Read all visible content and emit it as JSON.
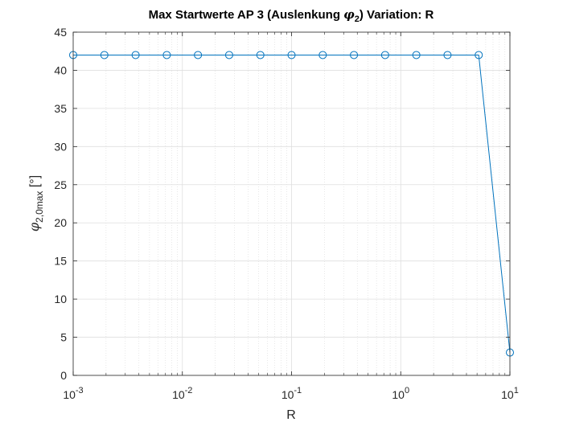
{
  "chart_data": {
    "type": "line",
    "title_parts": {
      "before": "Max Startwerte AP 3 (Auslenkung ",
      "symbol": "φ",
      "subscript": "2",
      "after": ")  Variation: R"
    },
    "xlabel": "R",
    "ylabel_parts": {
      "symbol": "φ",
      "subscript": "2,0max",
      "unit": " [°]"
    },
    "x_scale": "log",
    "xlim": [
      0.001,
      10
    ],
    "ylim": [
      0,
      45
    ],
    "x_ticks": [
      {
        "base": "10",
        "exp": "-3",
        "value": 0.001
      },
      {
        "base": "10",
        "exp": "-2",
        "value": 0.01
      },
      {
        "base": "10",
        "exp": "-1",
        "value": 0.1
      },
      {
        "base": "10",
        "exp": "0",
        "value": 1
      },
      {
        "base": "10",
        "exp": "1",
        "value": 10
      }
    ],
    "y_ticks": [
      "0",
      "5",
      "10",
      "15",
      "20",
      "25",
      "30",
      "35",
      "40",
      "45"
    ],
    "grid": true,
    "minor_grid": true,
    "marker": "circle",
    "series": [
      {
        "color": "#0072BD",
        "x": [
          0.001,
          0.00193,
          0.00373,
          0.0072,
          0.01389,
          0.02683,
          0.05179,
          0.1,
          0.1931,
          0.3728,
          0.7197,
          1.3895,
          2.6827,
          5.1795,
          10
        ],
        "y": [
          42,
          42,
          42,
          42,
          42,
          42,
          42,
          42,
          42,
          42,
          42,
          42,
          42,
          42,
          3
        ]
      }
    ]
  }
}
